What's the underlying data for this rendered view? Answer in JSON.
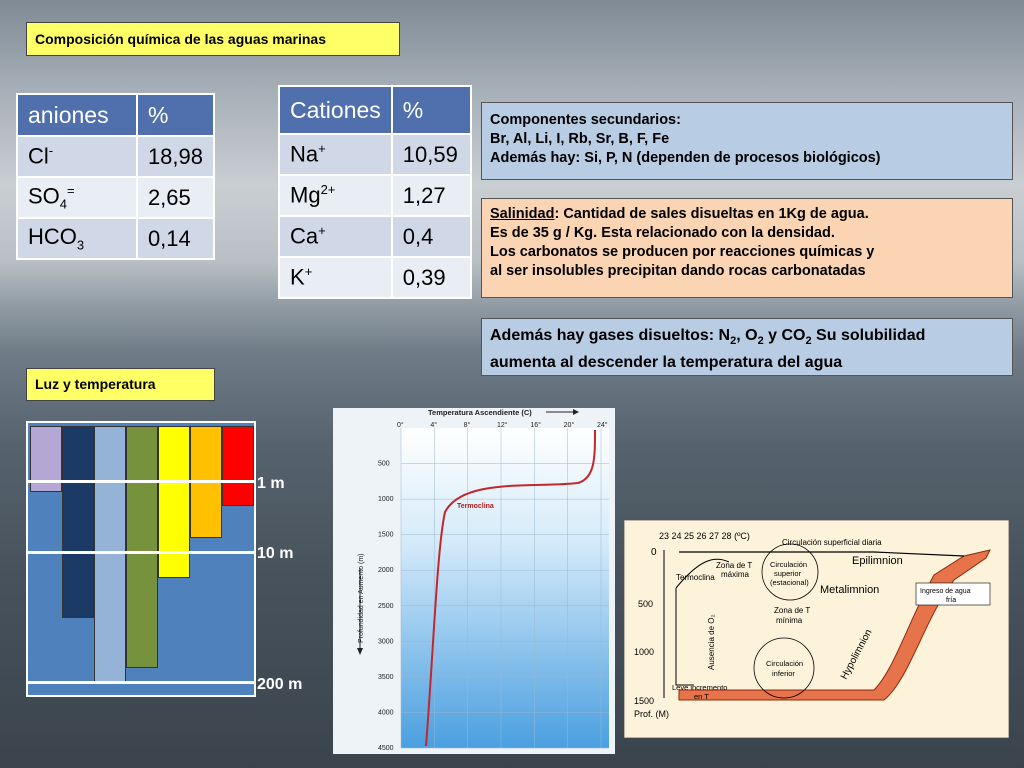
{
  "title": "Composición química de las aguas marinas",
  "aniones": {
    "header": [
      "aniones",
      "%"
    ],
    "rows": [
      {
        "ion": "Cl",
        "sup": "-",
        "sub": "",
        "suffix": "",
        "pct": "18,98"
      },
      {
        "ion": "SO",
        "sup": "",
        "sub": "4",
        "suffix": "=",
        "pct": "2,65"
      },
      {
        "ion": "HCO",
        "sup": "",
        "sub": "3",
        "suffix": "",
        "pct": "0,14"
      }
    ]
  },
  "cationes": {
    "header": [
      "Cationes",
      "%"
    ],
    "rows": [
      {
        "ion": "Na",
        "sup": "+",
        "pct": "10,59"
      },
      {
        "ion": "Mg",
        "sup": "2+",
        "pct": "1,27"
      },
      {
        "ion": "Ca",
        "sup": "+",
        "pct": "0,4"
      },
      {
        "ion": "K",
        "sup": "+",
        "pct": "0,39"
      }
    ]
  },
  "secundarios": {
    "line1": "Componentes secundarios:",
    "line2": "Br, Al, Li, I, Rb, Sr, B, F, Fe",
    "line3": "Además hay: Si, P, N (dependen de procesos biológicos)"
  },
  "salinidad": {
    "term": "Salinidad",
    "line1": ": Cantidad de sales disueltas en 1Kg de agua.",
    "line2": "Es de 35 g / Kg. Esta relacionado con la densidad.",
    "line3": "Los carbonatos se producen por reacciones químicas y",
    "line4": "al ser insolubles precipitan dando rocas carbonatadas"
  },
  "gases": {
    "a": "Además hay gases disueltos: N",
    "s1": "2",
    "b": ", O",
    "s2": "2",
    "c": " y CO",
    "s3": "2",
    "d": " Su solubilidad",
    "line2": "aumenta al descender la temperatura del agua"
  },
  "luz_title": "Luz y temperatura",
  "light_depths": [
    "1 m",
    "10 m",
    "200 m"
  ],
  "light_colors": [
    "#b4a7d6",
    "#1c3a66",
    "#95b3d7",
    "#76923c",
    "#ffff00",
    "#ffc000",
    "#ff0000"
  ],
  "thermo_chart": {
    "title": "Temperatura Ascendiente (C)",
    "ylabel": "Profundidad en Aumento (m)",
    "x_ticks": [
      "0°",
      "4°",
      "8°",
      "12°",
      "16°",
      "20°",
      "24°"
    ],
    "y_ticks": [
      "500",
      "1000",
      "1500",
      "2000",
      "2500",
      "3000",
      "3500",
      "4000",
      "4500"
    ],
    "annotation": "Termoclina",
    "colors": {
      "curve": "#c0282e",
      "water": "#4a9fe0"
    }
  },
  "lake_diagram": {
    "temps": "23 24 25 26 27 28 (ºC)",
    "depths": [
      "0",
      "500",
      "1000",
      "1500"
    ],
    "prof": "Prof. (M)",
    "labels": {
      "circ_sup_diaria": "Circulación superficial diaria",
      "epilimnion": "Epilimnion",
      "zona_t_max_1": "Zona de T",
      "zona_t_max_2": "máxima",
      "circ_sup_1": "Circulación",
      "circ_sup_2": "superior",
      "circ_sup_3": "(estacional)",
      "metalimnion": "Metalimnion",
      "termoclina": "Termoclina",
      "ingreso_1": "Ingreso de agua",
      "ingreso_2": "fría",
      "zona_t_min_1": "Zona de T",
      "zona_t_min_2": "mínima",
      "ausencia": "Ausencia de O₂",
      "circ_inf_1": "Circulación",
      "circ_inf_2": "inferior",
      "hypolimnion": "Hypolimnion",
      "leve_1": "Leve incremento",
      "leve_2": "en T"
    }
  }
}
